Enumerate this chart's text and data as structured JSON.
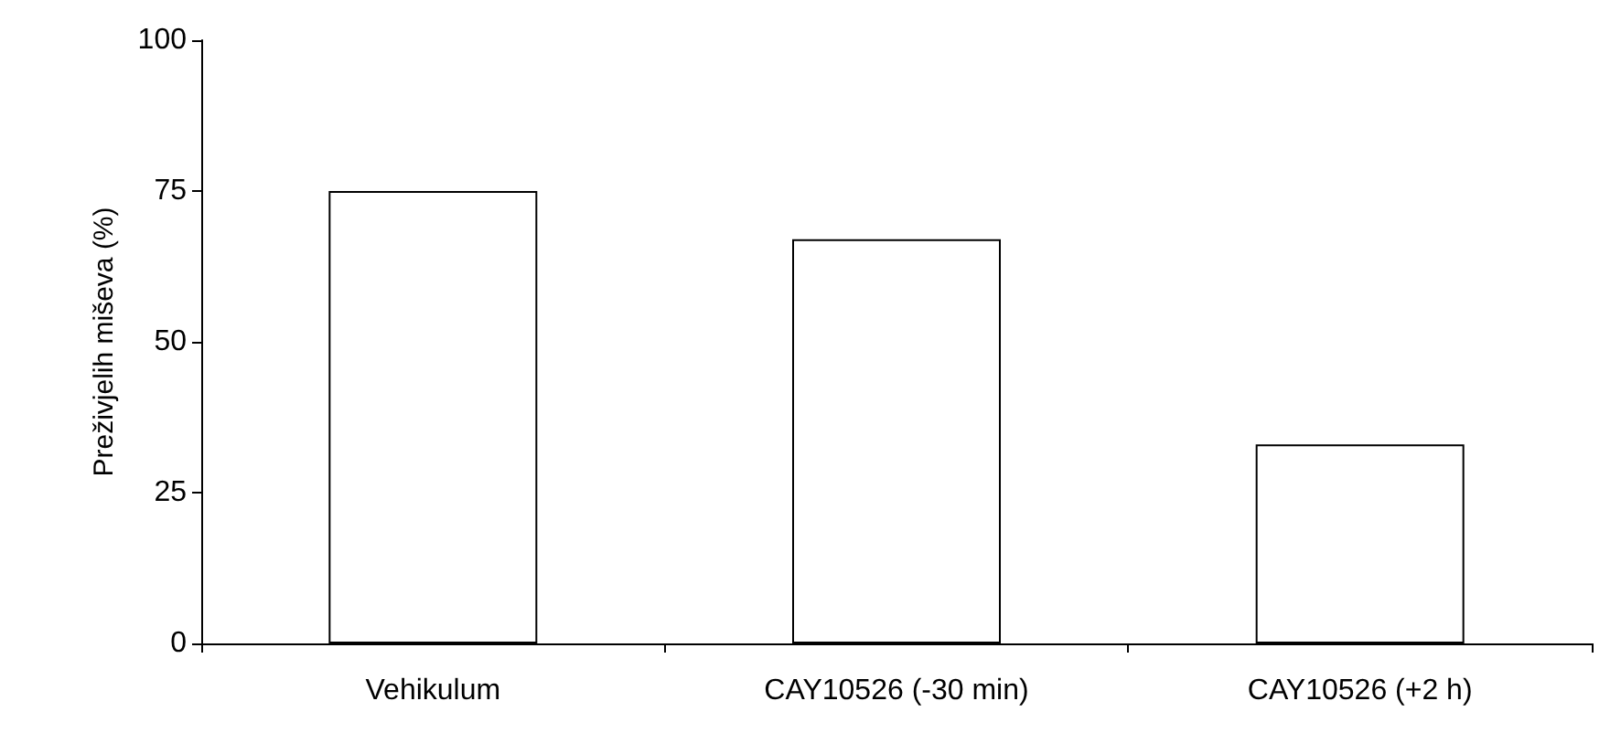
{
  "chart_data": {
    "type": "bar",
    "ylabel": "Preživjelih miševa (%)",
    "categories": [
      "Vehikulum",
      "CAY10526 (-30 min)",
      "CAY10526 (+2 h)"
    ],
    "values": [
      75,
      67,
      33
    ],
    "color": "#ffffff",
    "ylim": [
      0,
      100
    ],
    "yticks": [
      0,
      25,
      50,
      75,
      100
    ],
    "grid": false
  }
}
